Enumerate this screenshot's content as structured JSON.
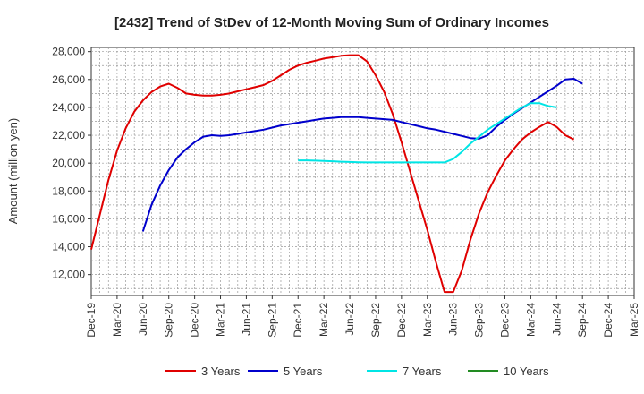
{
  "chart_data": {
    "type": "line",
    "title": "[2432]  Trend of StDev of 12-Month Moving Sum of Ordinary Incomes",
    "ylabel": "Amount (million yen)",
    "xlabel": "",
    "ylim": [
      10500,
      28300
    ],
    "yticks": [
      12000,
      14000,
      16000,
      18000,
      20000,
      22000,
      24000,
      26000,
      28000
    ],
    "ytick_labels": [
      "12,000",
      "14,000",
      "16,000",
      "18,000",
      "20,000",
      "22,000",
      "24,000",
      "26,000",
      "28,000"
    ],
    "x_tick_labels": [
      "Dec-19",
      "Mar-20",
      "Jun-20",
      "Sep-20",
      "Dec-20",
      "Mar-21",
      "Jun-21",
      "Sep-21",
      "Dec-21",
      "Mar-22",
      "Jun-22",
      "Sep-22",
      "Dec-22",
      "Mar-23",
      "Jun-23",
      "Sep-23",
      "Dec-23",
      "Mar-24",
      "Jun-24",
      "Sep-24",
      "Dec-24",
      "Mar-25"
    ],
    "grid": true,
    "legend_position": "bottom",
    "series": [
      {
        "name": "3 Years",
        "color": "#e00000",
        "start_index": 0,
        "values": [
          13800,
          16300,
          18800,
          20900,
          22500,
          23700,
          24500,
          25100,
          25500,
          25700,
          25400,
          25000,
          24900,
          24850,
          24850,
          24900,
          25000,
          25150,
          25300,
          25450,
          25600,
          25900,
          26300,
          26700,
          27000,
          27200,
          27350,
          27500,
          27600,
          27700,
          27750,
          27750,
          27300,
          26300,
          25100,
          23500,
          21500,
          19400,
          17300,
          15200,
          12900,
          10750,
          10750,
          12300,
          14500,
          16400,
          17900,
          19100,
          20200,
          21000,
          21700,
          22200,
          22600,
          22950,
          22600,
          22000,
          21700
        ]
      },
      {
        "name": "5 Years",
        "color": "#0000cc",
        "start_index": 6,
        "values": [
          15100,
          17000,
          18400,
          19500,
          20400,
          21000,
          21500,
          21900,
          22000,
          21950,
          22000,
          22100,
          22200,
          22300,
          22400,
          22550,
          22700,
          22800,
          22900,
          23000,
          23100,
          23200,
          23250,
          23300,
          23300,
          23300,
          23250,
          23200,
          23150,
          23100,
          22950,
          22800,
          22650,
          22500,
          22400,
          22250,
          22100,
          21950,
          21800,
          21750,
          22000,
          22600,
          23100,
          23550,
          23950,
          24350,
          24750,
          25150,
          25550,
          26000,
          26050,
          25700
        ]
      },
      {
        "name": "7 Years",
        "color": "#00e5e5",
        "start_index": 24,
        "values": [
          20200,
          20200,
          20180,
          20150,
          20130,
          20100,
          20080,
          20060,
          20050,
          20050,
          20050,
          20050,
          20050,
          20050,
          20050,
          20050,
          20050,
          20050,
          20300,
          20800,
          21400,
          21900,
          22400,
          22800,
          23200,
          23600,
          24000,
          24300,
          24300,
          24100,
          24000
        ]
      },
      {
        "name": "10 Years",
        "color": "#228b22",
        "start_index": 0,
        "values": []
      }
    ]
  }
}
